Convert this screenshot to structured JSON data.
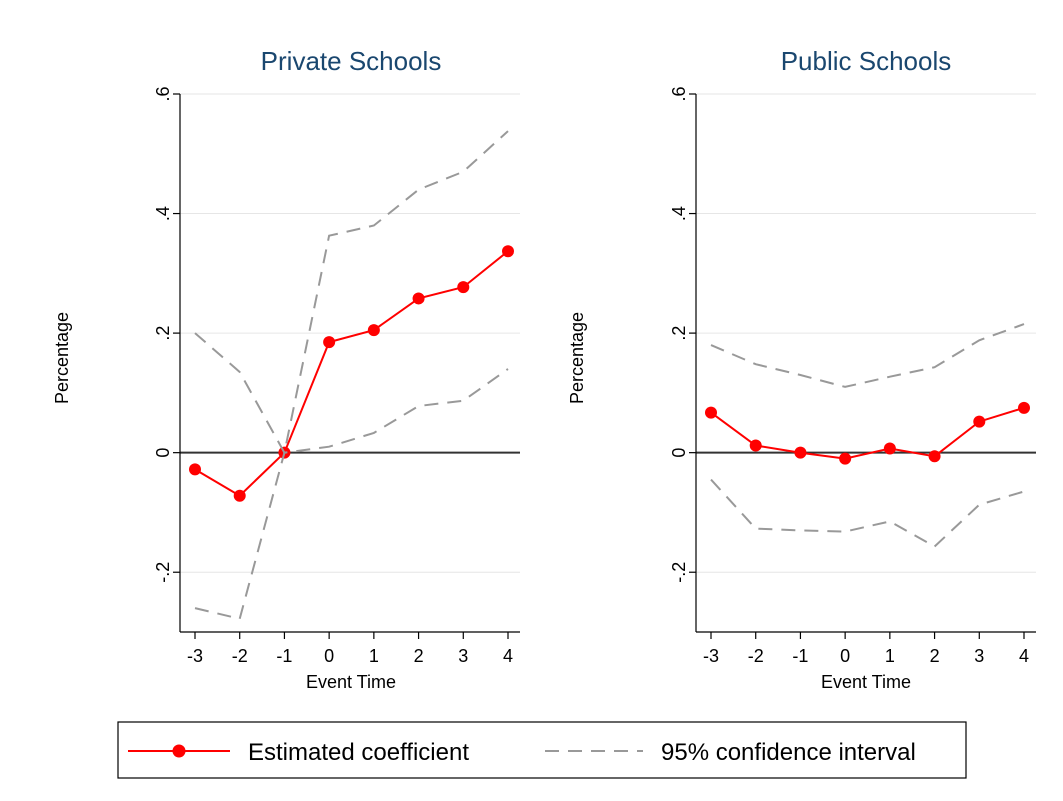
{
  "chart_data": [
    {
      "type": "line",
      "title": "Private Schools",
      "xlabel": "Event Time",
      "ylabel": "Percentage",
      "x": [
        -3,
        -2,
        -1,
        0,
        1,
        2,
        3,
        4
      ],
      "xticks": [
        "-3",
        "-2",
        "-1",
        "0",
        "1",
        "2",
        "3",
        "4"
      ],
      "yticks": [
        {
          "value": -0.2,
          "label": "-.2"
        },
        {
          "value": 0,
          "label": "0"
        },
        {
          "value": 0.2,
          "label": ".2"
        },
        {
          "value": 0.4,
          "label": ".4"
        },
        {
          "value": 0.6,
          "label": ".6"
        }
      ],
      "ylim": [
        -0.3,
        0.6
      ],
      "grid": true,
      "series": [
        {
          "name": "Estimated coefficient",
          "role": "coef",
          "values": [
            -0.028,
            -0.072,
            0.0,
            0.185,
            0.205,
            0.258,
            0.277,
            0.337
          ]
        },
        {
          "name": "95% confidence interval",
          "role": "ci_upper",
          "values": [
            0.2,
            0.135,
            0.0,
            0.363,
            0.38,
            0.44,
            0.47,
            0.538
          ]
        },
        {
          "name": "95% confidence interval",
          "role": "ci_lower",
          "values": [
            -0.26,
            -0.278,
            0.0,
            0.01,
            0.033,
            0.078,
            0.087,
            0.14
          ]
        }
      ]
    },
    {
      "type": "line",
      "title": "Public Schools",
      "xlabel": "Event Time",
      "ylabel": "Percentage",
      "x": [
        -3,
        -2,
        -1,
        0,
        1,
        2,
        3,
        4
      ],
      "xticks": [
        "-3",
        "-2",
        "-1",
        "0",
        "1",
        "2",
        "3",
        "4"
      ],
      "yticks": [
        {
          "value": -0.2,
          "label": "-.2"
        },
        {
          "value": 0,
          "label": "0"
        },
        {
          "value": 0.2,
          "label": ".2"
        },
        {
          "value": 0.4,
          "label": ".4"
        },
        {
          "value": 0.6,
          "label": ".6"
        }
      ],
      "ylim": [
        -0.3,
        0.6
      ],
      "grid": true,
      "series": [
        {
          "name": "Estimated coefficient",
          "role": "coef",
          "values": [
            0.067,
            0.012,
            0.0,
            -0.01,
            0.007,
            -0.006,
            0.052,
            0.075
          ]
        },
        {
          "name": "95% confidence interval",
          "role": "ci_upper",
          "values": [
            0.18,
            0.148,
            0.13,
            0.11,
            0.127,
            0.143,
            0.188,
            0.215
          ]
        },
        {
          "name": "95% confidence interval",
          "role": "ci_lower",
          "values": [
            -0.045,
            -0.127,
            -0.13,
            -0.132,
            -0.115,
            -0.157,
            -0.087,
            -0.065
          ]
        }
      ]
    }
  ],
  "legend": {
    "items": [
      {
        "label": "Estimated coefficient",
        "style": "solid-marker",
        "color": "#ff0000"
      },
      {
        "label": "95% confidence interval",
        "style": "dashed",
        "color": "#999999"
      }
    ]
  },
  "colors": {
    "coef": "#ff0000",
    "ci": "#999999",
    "title": "#1a476f",
    "grid": "#e6e6e6",
    "zero_line": "#333333"
  }
}
